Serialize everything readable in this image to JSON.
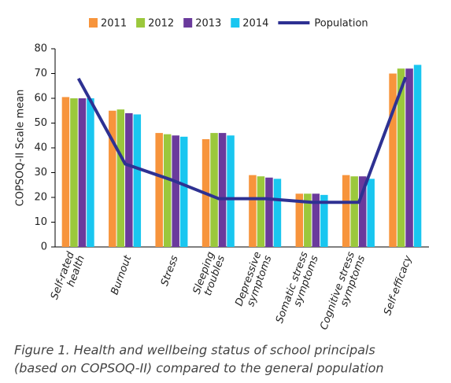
{
  "chart_data": {
    "type": "bar",
    "y_label": "COPSOQ-II Scale mean",
    "categories": [
      [
        "Self-rated",
        "health"
      ],
      [
        "Burnout"
      ],
      [
        "Stress"
      ],
      [
        "Sleeping",
        "troubles"
      ],
      [
        "Depressive",
        "symptoms"
      ],
      [
        "Somatic stress",
        "symptoms"
      ],
      [
        "Cognitive stress",
        "symptoms"
      ],
      [
        "Self-efficacy"
      ]
    ],
    "series": [
      {
        "name": "2011",
        "color": "#f7943c",
        "values": [
          60.5,
          55,
          46,
          43.5,
          29,
          21.5,
          29,
          70
        ]
      },
      {
        "name": "2012",
        "color": "#9bc83c",
        "values": [
          60,
          55.5,
          45.5,
          46,
          28.5,
          21.5,
          28.5,
          72
        ]
      },
      {
        "name": "2013",
        "color": "#6a3a9c",
        "values": [
          60,
          54,
          45,
          46,
          28,
          21.5,
          28.5,
          72
        ]
      },
      {
        "name": "2014",
        "color": "#19c6f0",
        "values": [
          60,
          53.5,
          44.5,
          45,
          27.5,
          21,
          27.5,
          73.5
        ]
      },
      {
        "name": "Population",
        "color": "#2e3192",
        "type": "line",
        "values": [
          68,
          33.5,
          27,
          19.5,
          19.5,
          18,
          18,
          68.5
        ]
      }
    ],
    "ylim": [
      0,
      80
    ],
    "yticks": [
      0,
      10,
      20,
      30,
      40,
      50,
      60,
      70,
      80
    ],
    "caption": [
      "Figure 1. Health and wellbeing status of school principals",
      "(based on COPSOQ-II) compared to the general population"
    ]
  }
}
